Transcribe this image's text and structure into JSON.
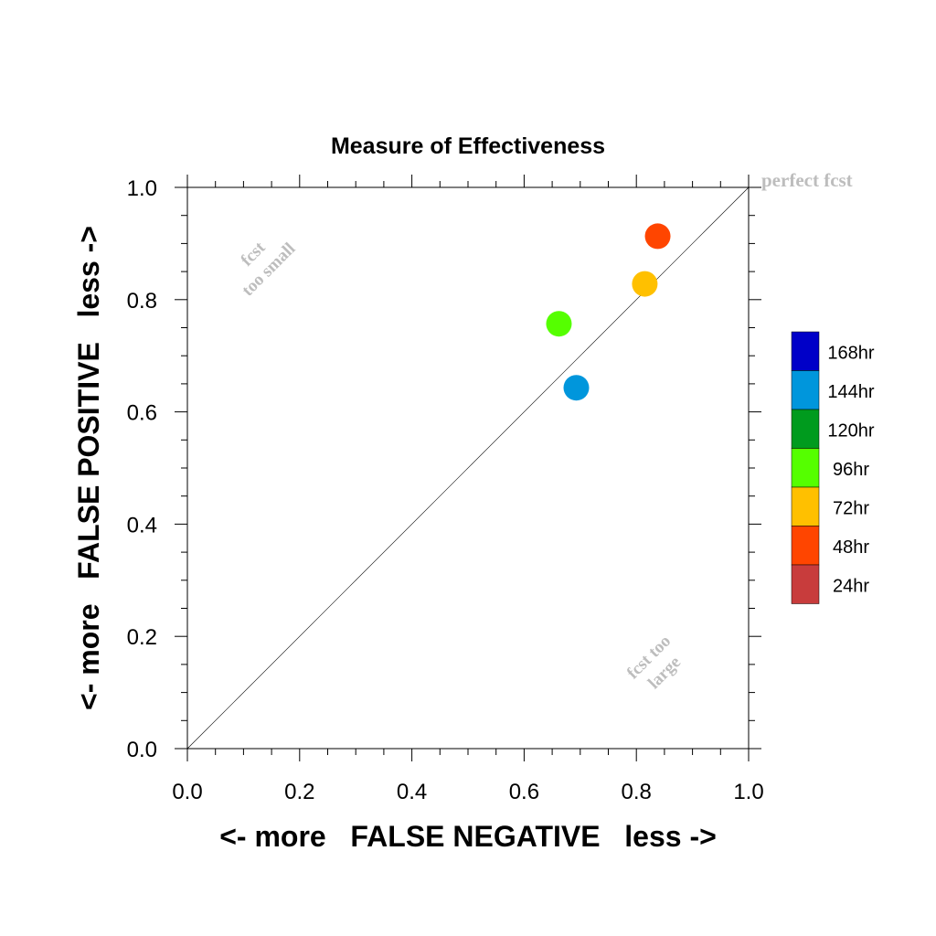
{
  "chart_data": {
    "type": "scatter",
    "title": "Measure of Effectiveness",
    "xlabel": "<- more   FALSE NEGATIVE   less ->",
    "ylabel": "<- more   FALSE POSITIVE   less ->",
    "xlim": [
      0.0,
      1.0
    ],
    "ylim": [
      0.0,
      1.0
    ],
    "xticks": [
      "0.0",
      "0.2",
      "0.4",
      "0.6",
      "0.8",
      "1.0"
    ],
    "yticks": [
      "0.0",
      "0.2",
      "0.4",
      "0.6",
      "0.8",
      "1.0"
    ],
    "grid": false,
    "reference_line": "diagonal",
    "annotations": {
      "perfect": "perfect fcst",
      "too_small_1": "fcst",
      "too_small_2": "too small",
      "too_large_1": "fcst too",
      "too_large_2": "large"
    },
    "legend": {
      "position": "right",
      "items": [
        {
          "label": "168hr",
          "color": "#0000c8"
        },
        {
          "label": "144hr",
          "color": "#0096dc"
        },
        {
          "label": "120hr",
          "color": "#009b1e"
        },
        {
          "label": "96hr",
          "color": "#55ff00"
        },
        {
          "label": "72hr",
          "color": "#ffc000"
        },
        {
          "label": "48hr",
          "color": "#ff4500"
        },
        {
          "label": "24hr",
          "color": "#c83c3c"
        }
      ]
    },
    "points": [
      {
        "series": "48hr",
        "x": 0.838,
        "y": 0.913,
        "color": "#ff4500"
      },
      {
        "series": "72hr",
        "x": 0.815,
        "y": 0.828,
        "color": "#ffc000"
      },
      {
        "series": "96hr",
        "x": 0.662,
        "y": 0.757,
        "color": "#55ff00"
      },
      {
        "series": "144hr",
        "x": 0.693,
        "y": 0.643,
        "color": "#0096dc"
      }
    ]
  }
}
